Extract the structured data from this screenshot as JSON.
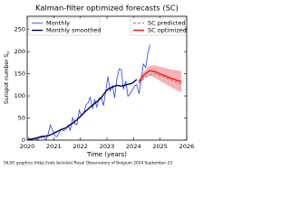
{
  "chart_data": {
    "type": "line",
    "title": "Kalman-filter optimized forecasts (SC)",
    "xlabel": "Time (years)",
    "ylabel": "Sunspot number S",
    "ylabel_sub": "n",
    "footer": "SILSO graphics (http://sidc.be/silso)  Royal Observatory of Belgium  2024 September 23",
    "xlim": [
      2020,
      2026
    ],
    "xticks": [
      2020,
      2021,
      2022,
      2023,
      2024,
      2025,
      2026
    ],
    "ylim": [
      0,
      280
    ],
    "yticks": [
      0,
      50,
      100,
      150,
      200,
      250
    ],
    "grid": false,
    "series": [
      {
        "name": "Monthly",
        "color": "#1f3fff",
        "style": "solid",
        "width": 0.8,
        "x": [
          2020.04,
          2020.12,
          2020.21,
          2020.29,
          2020.37,
          2020.46,
          2020.54,
          2020.62,
          2020.71,
          2020.79,
          2020.87,
          2020.96,
          2021.04,
          2021.12,
          2021.21,
          2021.29,
          2021.37,
          2021.46,
          2021.54,
          2021.62,
          2021.71,
          2021.79,
          2021.87,
          2021.96,
          2022.04,
          2022.12,
          2022.21,
          2022.29,
          2022.37,
          2022.46,
          2022.54,
          2022.62,
          2022.71,
          2022.79,
          2022.87,
          2022.96,
          2023.04,
          2023.12,
          2023.21,
          2023.29,
          2023.37,
          2023.46,
          2023.54,
          2023.62,
          2023.71,
          2023.79,
          2023.87,
          2023.96,
          2024.04,
          2024.12,
          2024.21,
          2024.29,
          2024.37,
          2024.46,
          2024.54,
          2024.62
        ],
        "values": [
          6,
          0,
          2,
          5,
          0,
          6,
          6,
          8,
          1,
          14,
          34,
          22,
          10,
          8,
          17,
          25,
          21,
          25,
          34,
          22,
          51,
          37,
          35,
          68,
          55,
          60,
          79,
          84,
          97,
          71,
          91,
          75,
          96,
          96,
          78,
          113,
          144,
          111,
          123,
          96,
          137,
          161,
          159,
          115,
          134,
          99,
          105,
          114,
          123,
          125,
          105,
          137,
          172,
          164,
          197,
          216
        ]
      },
      {
        "name": "Monthly smoothed",
        "color": "#000050",
        "style": "solid",
        "width": 1.4,
        "x": [
          2020.04,
          2020.12,
          2020.21,
          2020.29,
          2020.37,
          2020.46,
          2020.54,
          2020.62,
          2020.71,
          2020.79,
          2020.87,
          2020.96,
          2021.04,
          2021.12,
          2021.21,
          2021.29,
          2021.37,
          2021.46,
          2021.54,
          2021.62,
          2021.71,
          2021.79,
          2021.87,
          2021.96,
          2022.04,
          2022.12,
          2022.21,
          2022.29,
          2022.37,
          2022.46,
          2022.54,
          2022.62,
          2022.71,
          2022.79,
          2022.87,
          2022.96,
          2023.04,
          2023.12,
          2023.21,
          2023.29,
          2023.37,
          2023.46,
          2023.54,
          2023.62,
          2023.71,
          2023.79,
          2023.87,
          2023.96,
          2024.04,
          2024.12
        ],
        "values": [
          2,
          2,
          3,
          4,
          5,
          7,
          8,
          9,
          9,
          10,
          12,
          14,
          17,
          19,
          22,
          24,
          26,
          28,
          31,
          35,
          38,
          42,
          46,
          51,
          56,
          61,
          66,
          70,
          75,
          79,
          83,
          87,
          91,
          96,
          103,
          110,
          115,
          118,
          120,
          122,
          124,
          123,
          122,
          123,
          125,
          126,
          127,
          129,
          133,
          137
        ]
      },
      {
        "name": "SC predicted",
        "color": "#808080",
        "style": "dashed",
        "width": 1,
        "x": [
          2024.2,
          2024.4,
          2024.6,
          2024.8,
          2025.0,
          2025.2,
          2025.4,
          2025.6,
          2025.8
        ],
        "values": [
          128,
          140,
          148,
          150,
          146,
          141,
          136,
          131,
          127
        ]
      },
      {
        "name": "SC optimized",
        "color": "#ff2020",
        "style": "solid",
        "width": 1.6,
        "x": [
          2024.2,
          2024.4,
          2024.6,
          2024.8,
          2025.0,
          2025.2,
          2025.4,
          2025.6,
          2025.8
        ],
        "values": [
          132,
          148,
          157,
          155,
          150,
          145,
          140,
          136,
          132
        ],
        "range_low": [
          127,
          140,
          146,
          141,
          134,
          127,
          120,
          114,
          108
        ],
        "range_high": [
          137,
          156,
          168,
          169,
          166,
          163,
          160,
          158,
          156
        ],
        "range_color": "#f7b3b3"
      }
    ]
  }
}
